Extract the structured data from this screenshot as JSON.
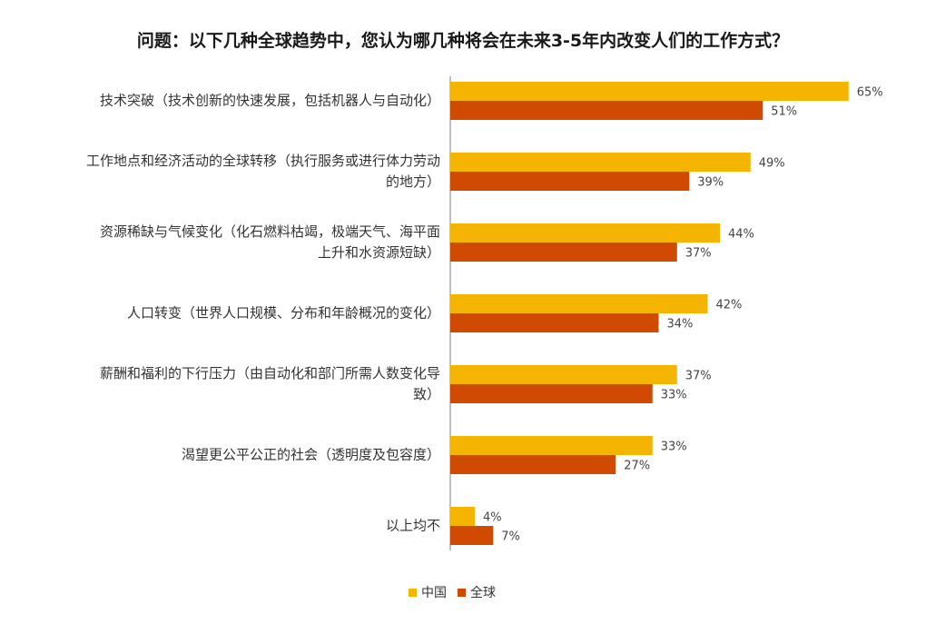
{
  "title": "问题：以下几种全球趋势中，您认为哪几种将会在未来3-5年内改变人们的工作方式？",
  "chart_data": {
    "type": "bar",
    "orientation": "horizontal",
    "categories": [
      [
        "技术突破（技术创新的快速发展，包括机器人与自动化）"
      ],
      [
        "工作地点和经济活动的全球转移（执行服务或进行体力劳动",
        "的地方）"
      ],
      [
        "资源稀缺与气候变化（化石燃料枯竭，极端天气、海平面",
        "上升和水资源短缺）"
      ],
      [
        "人口转变（世界人口规模、分布和年龄概况的变化）"
      ],
      [
        "薪酬和福利的下行压力（由自动化和部门所需人数变化导",
        "致）"
      ],
      [
        "渴望更公平公正的社会（透明度及包容度）"
      ],
      [
        "以上均不"
      ]
    ],
    "series": [
      {
        "name": "中国",
        "color": "#F5B400",
        "values": [
          65,
          49,
          44,
          42,
          37,
          33,
          4
        ],
        "labels": [
          "65%",
          "49%",
          "44%",
          "42%",
          "37%",
          "33%",
          "4%"
        ]
      },
      {
        "name": "全球",
        "color": "#D04A02",
        "values": [
          51,
          39,
          37,
          34,
          33,
          27,
          7
        ],
        "labels": [
          "51%",
          "39%",
          "37%",
          "34%",
          "33%",
          "27%",
          "7%"
        ]
      }
    ],
    "value_unit": "%",
    "xlim": [
      0,
      70
    ],
    "axis_line_color": "#7f7f7f",
    "legend_position": "bottom"
  }
}
